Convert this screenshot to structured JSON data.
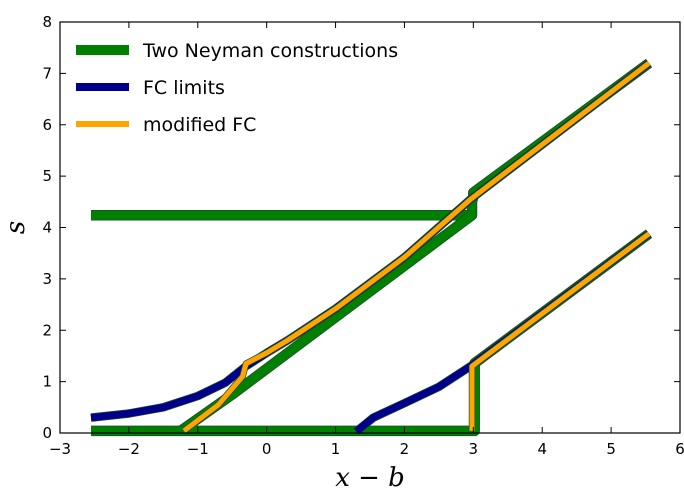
{
  "chart_data": {
    "type": "line",
    "xlabel": "x − b",
    "ylabel": "s",
    "xlim": [
      -3,
      6
    ],
    "ylim": [
      0,
      8
    ],
    "xticks": [
      -3,
      -2,
      -1,
      0,
      1,
      2,
      3,
      4,
      5,
      6
    ],
    "yticks": [
      0,
      1,
      2,
      3,
      4,
      5,
      6,
      7,
      8
    ],
    "xtick_labels": [
      "−3",
      "−2",
      "−1",
      "0",
      "1",
      "2",
      "3",
      "4",
      "5",
      "6"
    ],
    "ytick_labels": [
      "0",
      "1",
      "2",
      "3",
      "4",
      "5",
      "6",
      "7",
      "8"
    ],
    "grid": false,
    "legend_position": "top-left",
    "series": [
      {
        "name": "Two Neyman constructions",
        "color": "#008000",
        "segments": [
          [
            [
              -2.55,
              4.24
            ],
            [
              2.98,
              4.24
            ],
            [
              2.98,
              4.5
            ],
            [
              3.0,
              4.6
            ],
            [
              3.0,
              4.68
            ],
            [
              5.55,
              7.2
            ]
          ],
          [
            [
              -1.25,
              0.04
            ],
            [
              -0.5,
              0.75
            ],
            [
              2.98,
              4.24
            ]
          ],
          [
            [
              -2.55,
              0.04
            ],
            [
              3.02,
              0.04
            ],
            [
              3.02,
              1.36
            ],
            [
              5.55,
              3.88
            ]
          ]
        ]
      },
      {
        "name": "FC limits",
        "color": "#00008B",
        "segments": [
          [
            [
              -2.55,
              0.3
            ],
            [
              -2.0,
              0.38
            ],
            [
              -1.5,
              0.5
            ],
            [
              -1.0,
              0.72
            ],
            [
              -0.6,
              0.98
            ],
            [
              -0.3,
              1.3
            ],
            [
              0.0,
              1.56
            ],
            [
              0.3,
              1.8
            ],
            [
              1.0,
              2.42
            ],
            [
              2.0,
              3.42
            ],
            [
              2.96,
              4.55
            ],
            [
              5.55,
              7.2
            ]
          ],
          [
            [
              1.3,
              0.03
            ],
            [
              1.55,
              0.3
            ],
            [
              2.0,
              0.58
            ],
            [
              2.5,
              0.9
            ],
            [
              2.96,
              1.3
            ],
            [
              5.55,
              3.88
            ]
          ]
        ]
      },
      {
        "name": "modified FC",
        "color": "#FFA500",
        "segments": [
          [
            [
              -1.2,
              0.04
            ],
            [
              -0.7,
              0.55
            ],
            [
              -0.35,
              1.1
            ],
            [
              -0.3,
              1.35
            ],
            [
              0.0,
              1.56
            ],
            [
              0.3,
              1.8
            ],
            [
              1.0,
              2.42
            ],
            [
              2.0,
              3.42
            ],
            [
              2.96,
              4.55
            ],
            [
              5.55,
              7.2
            ]
          ],
          [
            [
              2.98,
              0.04
            ],
            [
              2.98,
              1.3
            ],
            [
              5.55,
              3.88
            ]
          ]
        ]
      }
    ]
  }
}
